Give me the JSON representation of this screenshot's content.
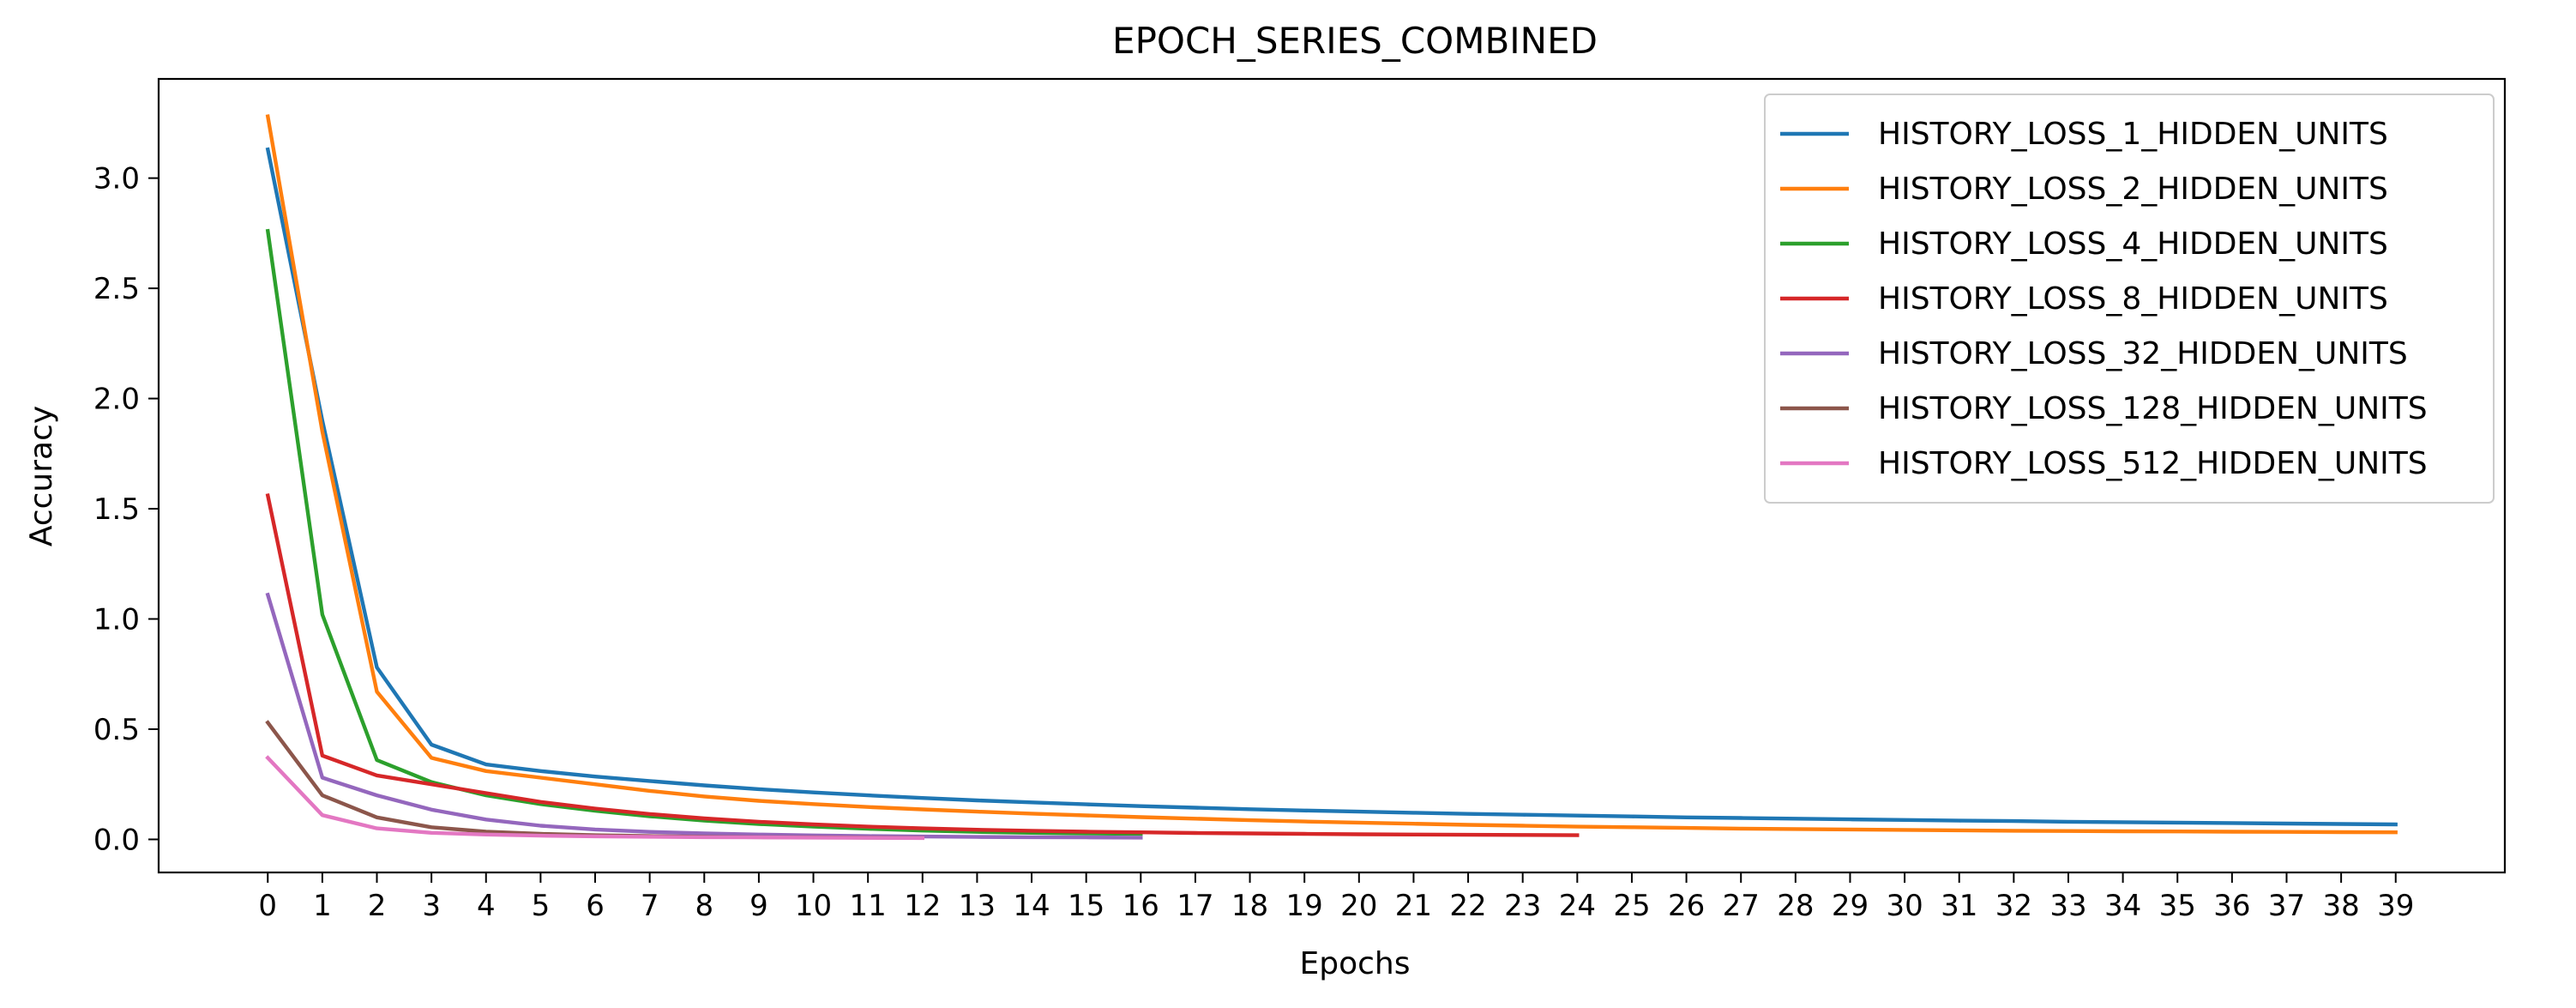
{
  "chart_data": {
    "type": "line",
    "title": "EPOCH_SERIES_COMBINED",
    "xlabel": "Epochs",
    "ylabel": "Accuracy",
    "xlim": [
      -2,
      41
    ],
    "ylim": [
      -0.15,
      3.45
    ],
    "xticks": [
      0,
      1,
      2,
      3,
      4,
      5,
      6,
      7,
      8,
      9,
      10,
      11,
      12,
      13,
      14,
      15,
      16,
      17,
      18,
      19,
      20,
      21,
      22,
      23,
      24,
      25,
      26,
      27,
      28,
      29,
      30,
      31,
      32,
      33,
      34,
      35,
      36,
      37,
      38,
      39
    ],
    "yticks": [
      0.0,
      0.5,
      1.0,
      1.5,
      2.0,
      2.5,
      3.0
    ],
    "ytick_labels": [
      "0.0",
      "0.5",
      "1.0",
      "1.5",
      "2.0",
      "2.5",
      "3.0"
    ],
    "grid": false,
    "legend_position": "top-right",
    "series": [
      {
        "name": "HISTORY_LOSS_1_HIDDEN_UNITS",
        "color": "#1f77b4",
        "values": [
          3.13,
          1.9,
          0.78,
          0.43,
          0.34,
          0.31,
          0.285,
          0.265,
          0.245,
          0.228,
          0.213,
          0.2,
          0.188,
          0.177,
          0.168,
          0.159,
          0.151,
          0.144,
          0.137,
          0.131,
          0.126,
          0.121,
          0.116,
          0.112,
          0.108,
          0.104,
          0.1,
          0.097,
          0.094,
          0.091,
          0.088,
          0.085,
          0.083,
          0.08,
          0.078,
          0.076,
          0.074,
          0.072,
          0.07,
          0.068
        ]
      },
      {
        "name": "HISTORY_LOSS_2_HIDDEN_UNITS",
        "color": "#ff7f0e",
        "values": [
          3.28,
          1.85,
          0.67,
          0.37,
          0.31,
          0.28,
          0.25,
          0.22,
          0.195,
          0.175,
          0.16,
          0.147,
          0.136,
          0.126,
          0.117,
          0.109,
          0.101,
          0.094,
          0.087,
          0.081,
          0.076,
          0.071,
          0.066,
          0.062,
          0.058,
          0.055,
          0.052,
          0.049,
          0.047,
          0.045,
          0.043,
          0.041,
          0.039,
          0.038,
          0.037,
          0.036,
          0.035,
          0.034,
          0.033,
          0.032
        ]
      },
      {
        "name": "HISTORY_LOSS_4_HIDDEN_UNITS",
        "color": "#2ca02c",
        "values": [
          2.76,
          1.02,
          0.36,
          0.26,
          0.2,
          0.16,
          0.13,
          0.105,
          0.085,
          0.07,
          0.058,
          0.048,
          0.04,
          0.034,
          0.03,
          0.027,
          0.025
        ]
      },
      {
        "name": "HISTORY_LOSS_8_HIDDEN_UNITS",
        "color": "#d62728",
        "values": [
          1.56,
          0.38,
          0.29,
          0.25,
          0.21,
          0.17,
          0.14,
          0.115,
          0.095,
          0.08,
          0.068,
          0.058,
          0.05,
          0.044,
          0.039,
          0.035,
          0.032,
          0.029,
          0.027,
          0.025,
          0.023,
          0.022,
          0.021,
          0.02,
          0.019
        ]
      },
      {
        "name": "HISTORY_LOSS_32_HIDDEN_UNITS",
        "color": "#9467bd",
        "values": [
          1.11,
          0.28,
          0.2,
          0.135,
          0.09,
          0.062,
          0.045,
          0.034,
          0.027,
          0.022,
          0.018,
          0.015,
          0.013,
          0.011,
          0.01,
          0.009,
          0.008
        ]
      },
      {
        "name": "HISTORY_LOSS_128_HIDDEN_UNITS",
        "color": "#8c564b",
        "values": [
          0.53,
          0.2,
          0.1,
          0.055,
          0.035,
          0.025,
          0.019,
          0.015,
          0.012,
          0.01,
          0.009,
          0.008,
          0.007
        ]
      },
      {
        "name": "HISTORY_LOSS_512_HIDDEN_UNITS",
        "color": "#e377c2",
        "values": [
          0.37,
          0.11,
          0.05,
          0.03,
          0.022,
          0.017,
          0.014,
          0.012,
          0.01,
          0.009,
          0.008,
          0.007,
          0.006
        ]
      }
    ]
  }
}
